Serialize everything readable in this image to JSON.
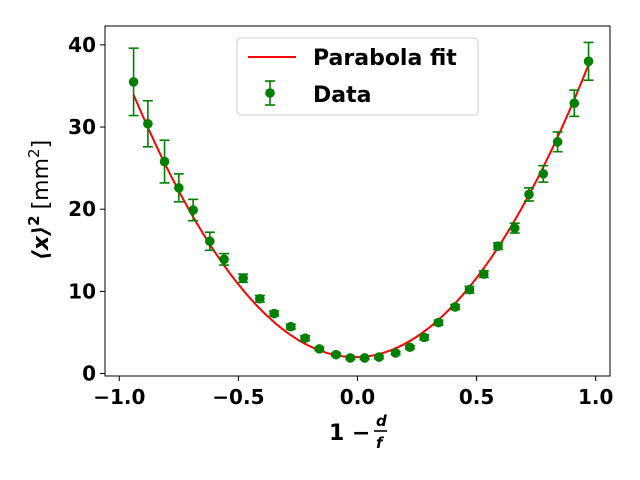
{
  "chart_data": {
    "type": "scatter",
    "xlabel_main": "1 −",
    "xlabel_frac_num": "d",
    "xlabel_frac_den": "f",
    "ylabel_main": "⟨x⟩",
    "ylabel_sup": "2",
    "ylabel_unit_open": "[mm",
    "ylabel_unit_sup": "2",
    "ylabel_unit_close": "]",
    "xlim": [
      -1.06,
      1.06
    ],
    "ylim": [
      -0.3,
      42.3
    ],
    "x_ticks": [
      -1.0,
      -0.5,
      0.0,
      0.5,
      1.0
    ],
    "x_tick_labels": [
      "−1.0",
      "−0.5",
      "0.0",
      "0.5",
      "1.0"
    ],
    "y_ticks": [
      0,
      10,
      20,
      30,
      40
    ],
    "y_tick_labels": [
      "0",
      "10",
      "20",
      "30",
      "40"
    ],
    "grid": false,
    "legend_position": "top-center",
    "colors": {
      "fit": "#ff0000",
      "data": "#008000"
    },
    "series": [
      {
        "name": "Parabola fit",
        "kind": "line",
        "coefficients": {
          "a": 37.0,
          "b": 0.8,
          "c": 2.0
        }
      },
      {
        "name": "Data",
        "kind": "errorbar",
        "x": [
          -0.94,
          -0.88,
          -0.81,
          -0.75,
          -0.69,
          -0.62,
          -0.56,
          -0.48,
          -0.41,
          -0.35,
          -0.28,
          -0.22,
          -0.16,
          -0.09,
          -0.03,
          0.03,
          0.09,
          0.16,
          0.22,
          0.28,
          0.34,
          0.41,
          0.47,
          0.53,
          0.59,
          0.66,
          0.72,
          0.78,
          0.84,
          0.91,
          0.97
        ],
        "y": [
          35.5,
          30.4,
          25.8,
          22.6,
          19.9,
          16.1,
          13.9,
          11.6,
          9.1,
          7.3,
          5.7,
          4.3,
          3.0,
          2.3,
          1.9,
          1.9,
          2.0,
          2.5,
          3.2,
          4.4,
          6.2,
          8.1,
          10.2,
          12.1,
          15.5,
          17.7,
          21.8,
          24.3,
          28.2,
          32.9,
          38.0
        ],
        "err": [
          4.1,
          2.8,
          2.6,
          1.7,
          1.3,
          1.1,
          0.7,
          0.5,
          0.4,
          0.3,
          0.3,
          0.3,
          0.2,
          0.2,
          0.2,
          0.2,
          0.2,
          0.2,
          0.2,
          0.3,
          0.3,
          0.3,
          0.4,
          0.4,
          0.4,
          0.6,
          0.8,
          1.0,
          1.2,
          1.6,
          2.3
        ]
      }
    ]
  }
}
